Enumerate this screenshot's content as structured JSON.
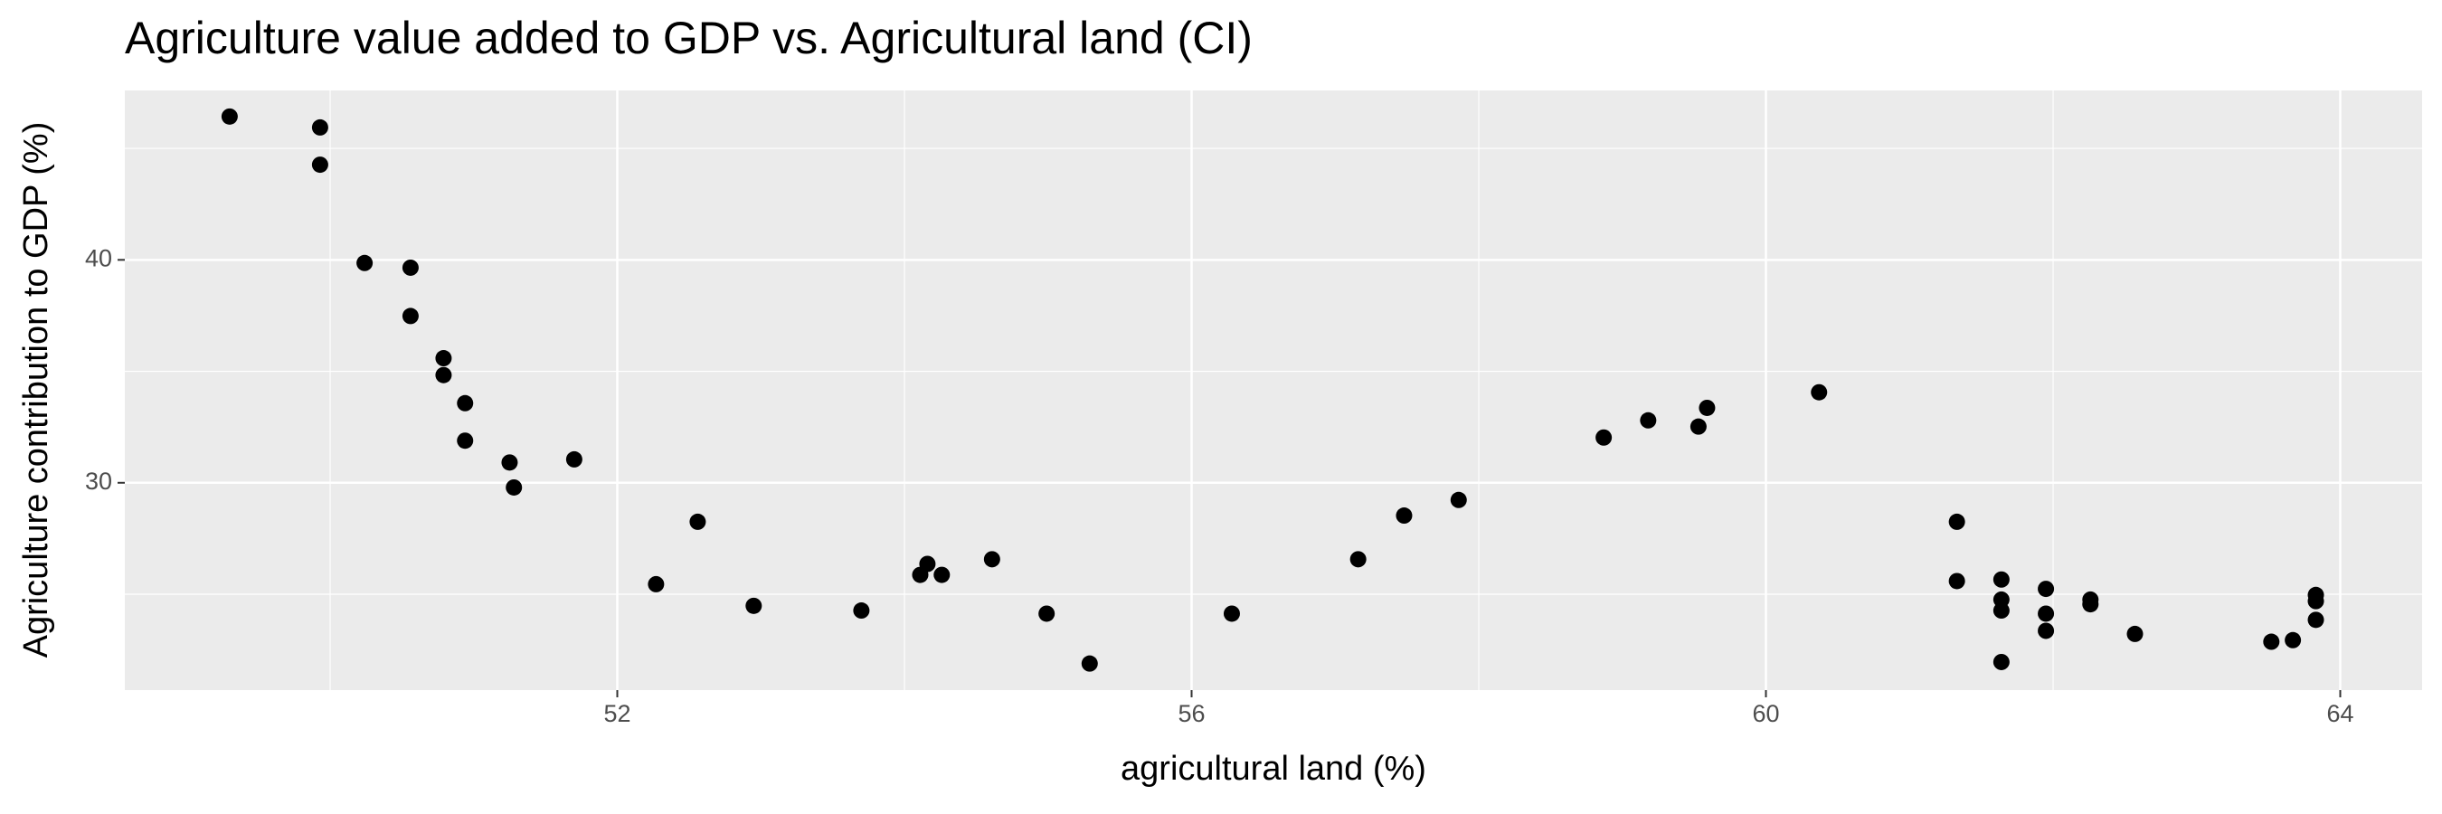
{
  "chart_data": {
    "type": "scatter",
    "title": "Agriculture value added to GDP vs. Agricultural land (CI)",
    "x_label": "agricultural land (%)",
    "y_label": "Agriculture contribution to GDP (%)",
    "color": "#000000",
    "grid": true,
    "xlim": [
      48.57,
      64.57
    ],
    "xticks": [
      52,
      56,
      60,
      64
    ],
    "ylim": [
      20.7,
      47.6
    ],
    "yticks": [
      30,
      40
    ],
    "series": [
      {
        "name": "CI",
        "color": "#000000",
        "x": [
          49.3,
          49.93,
          49.93,
          50.24,
          50.56,
          50.56,
          50.79,
          50.79,
          50.94,
          50.94,
          51.25,
          51.28,
          51.7,
          52.27,
          52.56,
          52.95,
          53.7,
          54.11,
          54.16,
          54.26,
          54.61,
          54.99,
          55.29,
          56.28,
          57.16,
          57.48,
          57.86,
          58.87,
          59.18,
          59.53,
          59.59,
          60.37,
          61.33,
          61.33,
          61.64,
          61.64,
          61.64,
          61.64,
          61.95,
          61.95,
          61.95,
          62.26,
          62.26,
          62.57,
          63.52,
          63.67,
          63.83,
          63.83,
          63.83
        ],
        "values": [
          46.43,
          45.94,
          44.27,
          39.86,
          39.65,
          37.48,
          35.59,
          34.83,
          33.57,
          31.89,
          30.91,
          29.79,
          31.05,
          25.45,
          28.25,
          24.48,
          24.27,
          25.87,
          26.36,
          25.87,
          26.57,
          24.13,
          21.89,
          24.13,
          26.57,
          28.53,
          29.23,
          32.03,
          32.8,
          32.52,
          33.36,
          34.06,
          28.25,
          25.59,
          25.66,
          24.76,
          24.27,
          21.96,
          25.24,
          24.13,
          23.36,
          24.76,
          24.55,
          23.22,
          22.87,
          22.94,
          24.97,
          24.69,
          23.85
        ]
      }
    ]
  }
}
